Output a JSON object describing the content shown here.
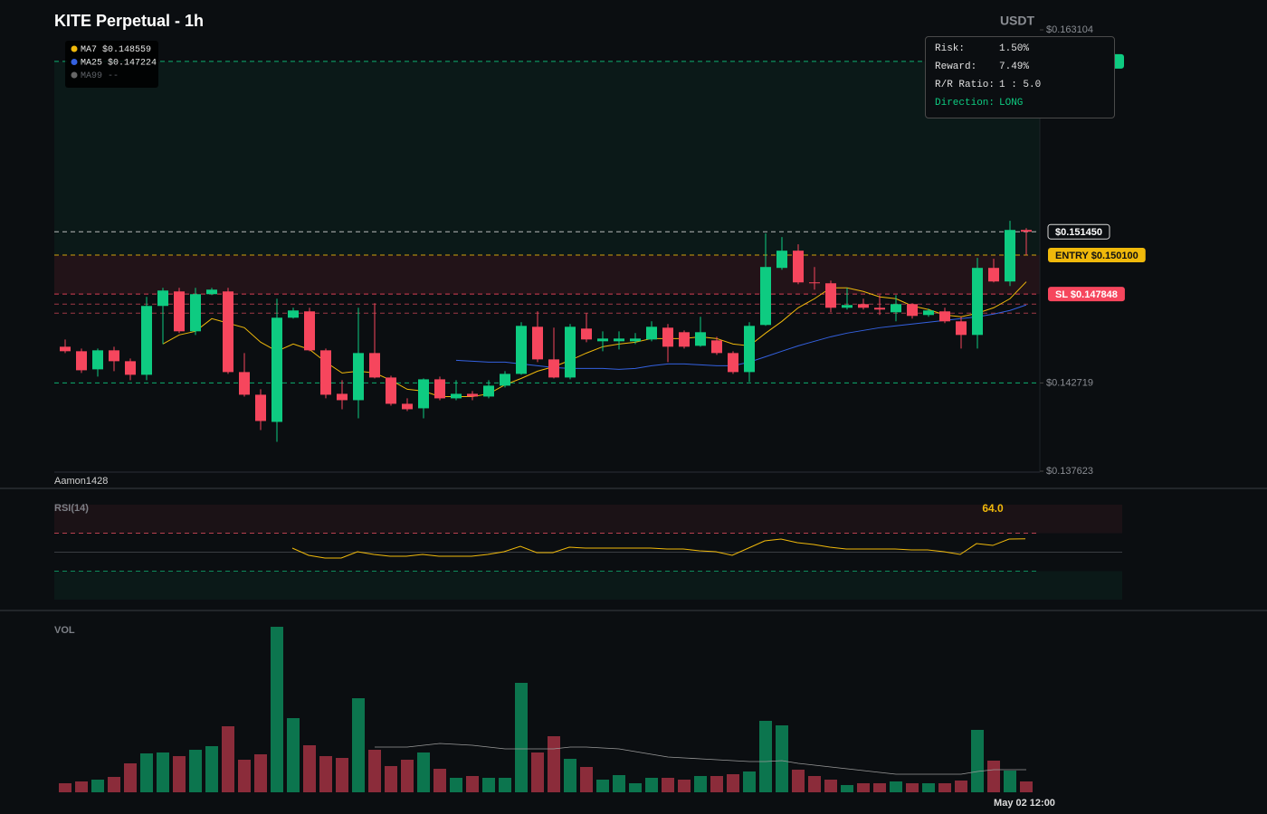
{
  "chart_data": [
    {
      "type": "candlestick",
      "title": "KITE Perpetual - 1h",
      "y_label": "USDT",
      "watermark": "Aamon1428",
      "up_color": "#0ecb81",
      "down_color": "#f6465d",
      "ylim": [
        0.137623,
        0.163104
      ],
      "yticks": [
        {
          "value": 0.163104,
          "label": "$0.163104"
        },
        {
          "value": 0.142719,
          "label": "$0.142719"
        },
        {
          "value": 0.137623,
          "label": "$0.137623"
        }
      ],
      "open": [
        0.144811,
        0.14455,
        0.143504,
        0.144602,
        0.143974,
        0.14319,
        0.147165,
        0.148001,
        0.1457,
        0.147844,
        0.148001,
        0.143347,
        0.142039,
        0.14047,
        0.146485,
        0.146851,
        0.144602,
        0.142091,
        0.141725,
        0.144445,
        0.143033,
        0.141516,
        0.141255,
        0.142928,
        0.14183,
        0.142091,
        0.141934,
        0.142562,
        0.143242,
        0.145962,
        0.144079,
        0.143033,
        0.145857,
        0.145125,
        0.145125,
        0.145125,
        0.145229,
        0.145909,
        0.145648,
        0.144863,
        0.145177,
        0.144445,
        0.143347,
        0.146066,
        0.149361,
        0.150355,
        0.148524,
        0.148472,
        0.14706,
        0.147269,
        0.14706,
        0.146798,
        0.147269,
        0.146642,
        0.146851,
        0.146275,
        0.145491,
        0.149361,
        0.148577,
        0.151553
      ],
      "high": [
        0.145229,
        0.144706,
        0.144706,
        0.144811,
        0.144131,
        0.147688,
        0.148211,
        0.148211,
        0.148211,
        0.148211,
        0.148211,
        0.144445,
        0.142353,
        0.147583,
        0.14706,
        0.14706,
        0.144706,
        0.142876,
        0.14706,
        0.147321,
        0.143137,
        0.14183,
        0.142981,
        0.143085,
        0.142876,
        0.142248,
        0.142876,
        0.143399,
        0.146223,
        0.146851,
        0.145909,
        0.146119,
        0.146746,
        0.1457,
        0.1457,
        0.145596,
        0.146275,
        0.146119,
        0.145752,
        0.146537,
        0.145386,
        0.14455,
        0.146223,
        0.151349,
        0.151139,
        0.150721,
        0.149413,
        0.148629,
        0.148211,
        0.147583,
        0.147792,
        0.147792,
        0.147321,
        0.147008,
        0.14706,
        0.146537,
        0.149936,
        0.149884,
        0.152081,
        0.151658
      ],
      "low": [
        0.144445,
        0.143294,
        0.143085,
        0.143399,
        0.142876,
        0.142876,
        0.144968,
        0.145596,
        0.145491,
        0.147792,
        0.143242,
        0.141934,
        0.139999,
        0.139319,
        0.146432,
        0.14455,
        0.14183,
        0.141202,
        0.140679,
        0.142981,
        0.141411,
        0.141098,
        0.140679,
        0.141725,
        0.141725,
        0.141725,
        0.14183,
        0.142457,
        0.14319,
        0.143922,
        0.142981,
        0.142928,
        0.145073,
        0.14455,
        0.144654,
        0.144968,
        0.145125,
        0.143922,
        0.144706,
        0.144811,
        0.14434,
        0.143242,
        0.142771,
        0.146014,
        0.149257,
        0.14842,
        0.148106,
        0.146798,
        0.146955,
        0.146955,
        0.146642,
        0.146275,
        0.146432,
        0.146537,
        0.146171,
        0.144706,
        0.144706,
        0.148524,
        0.148315,
        0.150093
      ],
      "close": [
        0.14455,
        0.143451,
        0.144602,
        0.143974,
        0.14319,
        0.147165,
        0.148054,
        0.1457,
        0.147844,
        0.148106,
        0.143347,
        0.142039,
        0.140522,
        0.146485,
        0.146903,
        0.144602,
        0.142039,
        0.141725,
        0.144445,
        0.143033,
        0.141516,
        0.141202,
        0.142928,
        0.14183,
        0.142091,
        0.141934,
        0.142562,
        0.143242,
        0.146014,
        0.144079,
        0.143033,
        0.145962,
        0.145229,
        0.145282,
        0.145282,
        0.145282,
        0.145962,
        0.144811,
        0.144811,
        0.145648,
        0.144445,
        0.143347,
        0.146014,
        0.149413,
        0.150355,
        0.148524,
        0.148472,
        0.14706,
        0.147217,
        0.14706,
        0.146955,
        0.147269,
        0.146589,
        0.146903,
        0.146275,
        0.145491,
        0.149361,
        0.148577,
        0.151553,
        0.15145
      ],
      "series": [
        {
          "name": "MA7",
          "color": "#f0b90b",
          "legend_value": "$0.148559",
          "values": [
            null,
            null,
            null,
            null,
            null,
            null,
            0.144968,
            0.145491,
            0.1457,
            0.146432,
            0.146171,
            0.145909,
            0.145073,
            0.14455,
            0.144968,
            0.144654,
            0.143922,
            0.143294,
            0.143399,
            0.143294,
            0.142876,
            0.142353,
            0.142248,
            0.141934,
            0.141934,
            0.141934,
            0.142091,
            0.142614,
            0.142981,
            0.143399,
            0.14366,
            0.144027,
            0.144445,
            0.144811,
            0.144968,
            0.145073,
            0.145282,
            0.145282,
            0.145282,
            0.145386,
            0.145282,
            0.144968,
            0.144863,
            0.145596,
            0.146275,
            0.14706,
            0.147583,
            0.148211,
            0.148211,
            0.148001,
            0.147688,
            0.147583,
            0.147165,
            0.146955,
            0.146642,
            0.146537,
            0.146746,
            0.14706,
            0.147583,
            0.148559
          ]
        },
        {
          "name": "MA25",
          "color": "#3461e0",
          "legend_value": "$0.147224",
          "values": [
            null,
            null,
            null,
            null,
            null,
            null,
            null,
            null,
            null,
            null,
            null,
            null,
            null,
            null,
            null,
            null,
            null,
            null,
            null,
            null,
            null,
            null,
            null,
            null,
            0.144027,
            0.143974,
            0.143922,
            0.143922,
            0.143817,
            0.143713,
            0.143608,
            0.143556,
            0.143556,
            0.143556,
            0.143504,
            0.143556,
            0.143713,
            0.143817,
            0.143817,
            0.143765,
            0.143713,
            0.143713,
            0.143922,
            0.144236,
            0.14455,
            0.144863,
            0.145125,
            0.145386,
            0.145596,
            0.145752,
            0.145909,
            0.146014,
            0.146119,
            0.146223,
            0.146328,
            0.146432,
            0.146537,
            0.146694,
            0.146903,
            0.147224
          ]
        },
        {
          "name": "MA99",
          "color": "#666666",
          "legend_value": "--"
        }
      ],
      "zones": [
        {
          "from": 0.161286,
          "to": 0.1501,
          "color": "rgba(14,203,129,0.06)"
        },
        {
          "from": 0.1501,
          "to": 0.147848,
          "color": "rgba(246,70,93,0.10)"
        }
      ],
      "levels": [
        {
          "value": 0.161286,
          "color": "#0ecb81"
        },
        {
          "value": 0.15145,
          "color": "#d8d8d8",
          "label": "$0.151450",
          "label_style": "outline"
        },
        {
          "value": 0.1501,
          "color": "#f0b90b",
          "label": "ENTRY $0.150100",
          "label_style": "fill"
        },
        {
          "value": 0.147848,
          "color": "#f6465d",
          "label": "SL $0.147848",
          "label_style": "fill"
        },
        {
          "value": 0.147269,
          "color": "#b8404f"
        },
        {
          "value": 0.146746,
          "color": "#b8404f"
        },
        {
          "value": 0.142719,
          "color": "#0ecb81"
        }
      ]
    },
    {
      "type": "line",
      "title": "RSI(14)",
      "ylim": [
        0,
        100
      ],
      "levels": [
        70,
        50,
        30
      ],
      "series": [
        {
          "color": "#f0b90b",
          "value_label": "64.0",
          "values": [
            null,
            null,
            null,
            null,
            null,
            null,
            null,
            null,
            null,
            null,
            null,
            null,
            null,
            null,
            54.3,
            46.7,
            43.8,
            43.8,
            50.5,
            47.6,
            45.7,
            45.7,
            47.6,
            45.7,
            45.7,
            45.7,
            47.6,
            50.5,
            56.2,
            49.5,
            49.5,
            55.2,
            54.3,
            54.3,
            54.3,
            54.3,
            54.3,
            53.3,
            53.3,
            51.4,
            50.5,
            46.7,
            54.3,
            61.9,
            63.8,
            60.0,
            58.1,
            55.2,
            53.3,
            53.3,
            53.3,
            53.3,
            52.4,
            52.4,
            50.5,
            47.6,
            59.0,
            57.1,
            63.8,
            64.0
          ]
        }
      ]
    },
    {
      "type": "bar",
      "title": "VOL",
      "categories": [
        null,
        null,
        null,
        null,
        null,
        null,
        null,
        null,
        null,
        null,
        null,
        null,
        null,
        null,
        null,
        null,
        null,
        null,
        null,
        null,
        null,
        null,
        null,
        null,
        null,
        null,
        null,
        null,
        null,
        null,
        null,
        null,
        null,
        null,
        null,
        null,
        null,
        null,
        null,
        null,
        null,
        null,
        null,
        null,
        null,
        null,
        null,
        null,
        null,
        null,
        null,
        null,
        null,
        null,
        null,
        null,
        null,
        null,
        null,
        "May 02 12:00"
      ],
      "values": [
        10,
        12,
        14,
        17,
        32,
        43,
        44,
        40,
        47,
        51,
        73,
        36,
        42,
        183,
        82,
        52,
        40,
        38,
        104,
        47,
        29,
        36,
        44,
        26,
        16,
        18,
        16,
        16,
        121,
        44,
        62,
        37,
        28,
        14,
        19,
        10,
        16,
        16,
        14,
        18,
        18,
        20,
        23,
        79,
        74,
        25,
        18,
        14,
        8,
        10,
        10,
        12,
        10,
        10,
        10,
        13,
        69,
        35,
        24,
        12
      ],
      "ma": {
        "color": "#9a9a9a",
        "values": [
          null,
          null,
          null,
          null,
          null,
          null,
          null,
          null,
          null,
          null,
          null,
          null,
          null,
          null,
          null,
          null,
          null,
          null,
          null,
          50,
          50,
          50,
          52,
          54,
          53,
          52,
          50,
          48,
          48,
          48,
          48,
          50,
          50,
          49,
          48,
          45,
          42,
          39,
          38,
          37,
          36,
          35,
          34,
          34,
          35,
          32,
          30,
          28,
          26,
          24,
          22,
          20,
          20,
          20,
          20,
          20,
          23,
          25,
          25,
          25
        ]
      }
    }
  ],
  "risk_panel": {
    "rows": [
      {
        "label": "Risk:",
        "value": "1.50%"
      },
      {
        "label": "Reward:",
        "value": "7.49%"
      },
      {
        "label": "R/R Ratio:",
        "value": "1 : 5.0"
      },
      {
        "label": "Direction:",
        "value": "LONG",
        "color": "#0ecb81"
      }
    ]
  }
}
